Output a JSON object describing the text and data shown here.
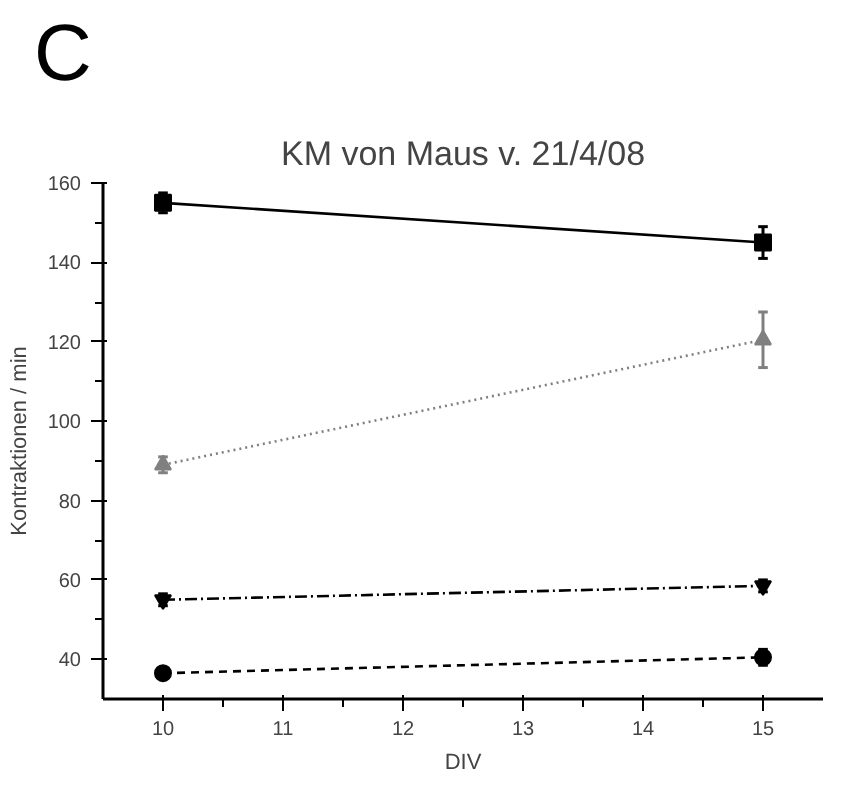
{
  "chart_data": {
    "type": "line",
    "title": "KM von Maus v. 21/4/08",
    "xlabel": "DIV",
    "ylabel": "Kontraktionen / min",
    "annotations": [
      "C"
    ],
    "x": [
      10,
      15
    ],
    "xlim": [
      9.5,
      15.5
    ],
    "xticks": [
      10,
      11,
      12,
      13,
      14,
      15
    ],
    "ylim": [
      30,
      160
    ],
    "yticks": [
      40,
      60,
      80,
      100,
      120,
      140,
      160
    ],
    "series": [
      {
        "color": "#000000",
        "marker": "square",
        "line_style": "solid",
        "values": [
          155,
          145
        ],
        "errors": [
          2.5,
          4
        ]
      },
      {
        "color": "#000000",
        "marker": "circle",
        "line_style": "dashed",
        "values": [
          36.5,
          40.5
        ],
        "errors": [
          1,
          2
        ]
      },
      {
        "color": "#808080",
        "marker": "triangle",
        "line_style": "dotted",
        "values": [
          89,
          120.5
        ],
        "errors": [
          2,
          7
        ]
      },
      {
        "color": "#000000",
        "marker": "triangle",
        "line_style": "dashdot",
        "values": [
          55,
          58.5
        ],
        "errors": [
          1.5,
          1.5
        ]
      }
    ]
  }
}
